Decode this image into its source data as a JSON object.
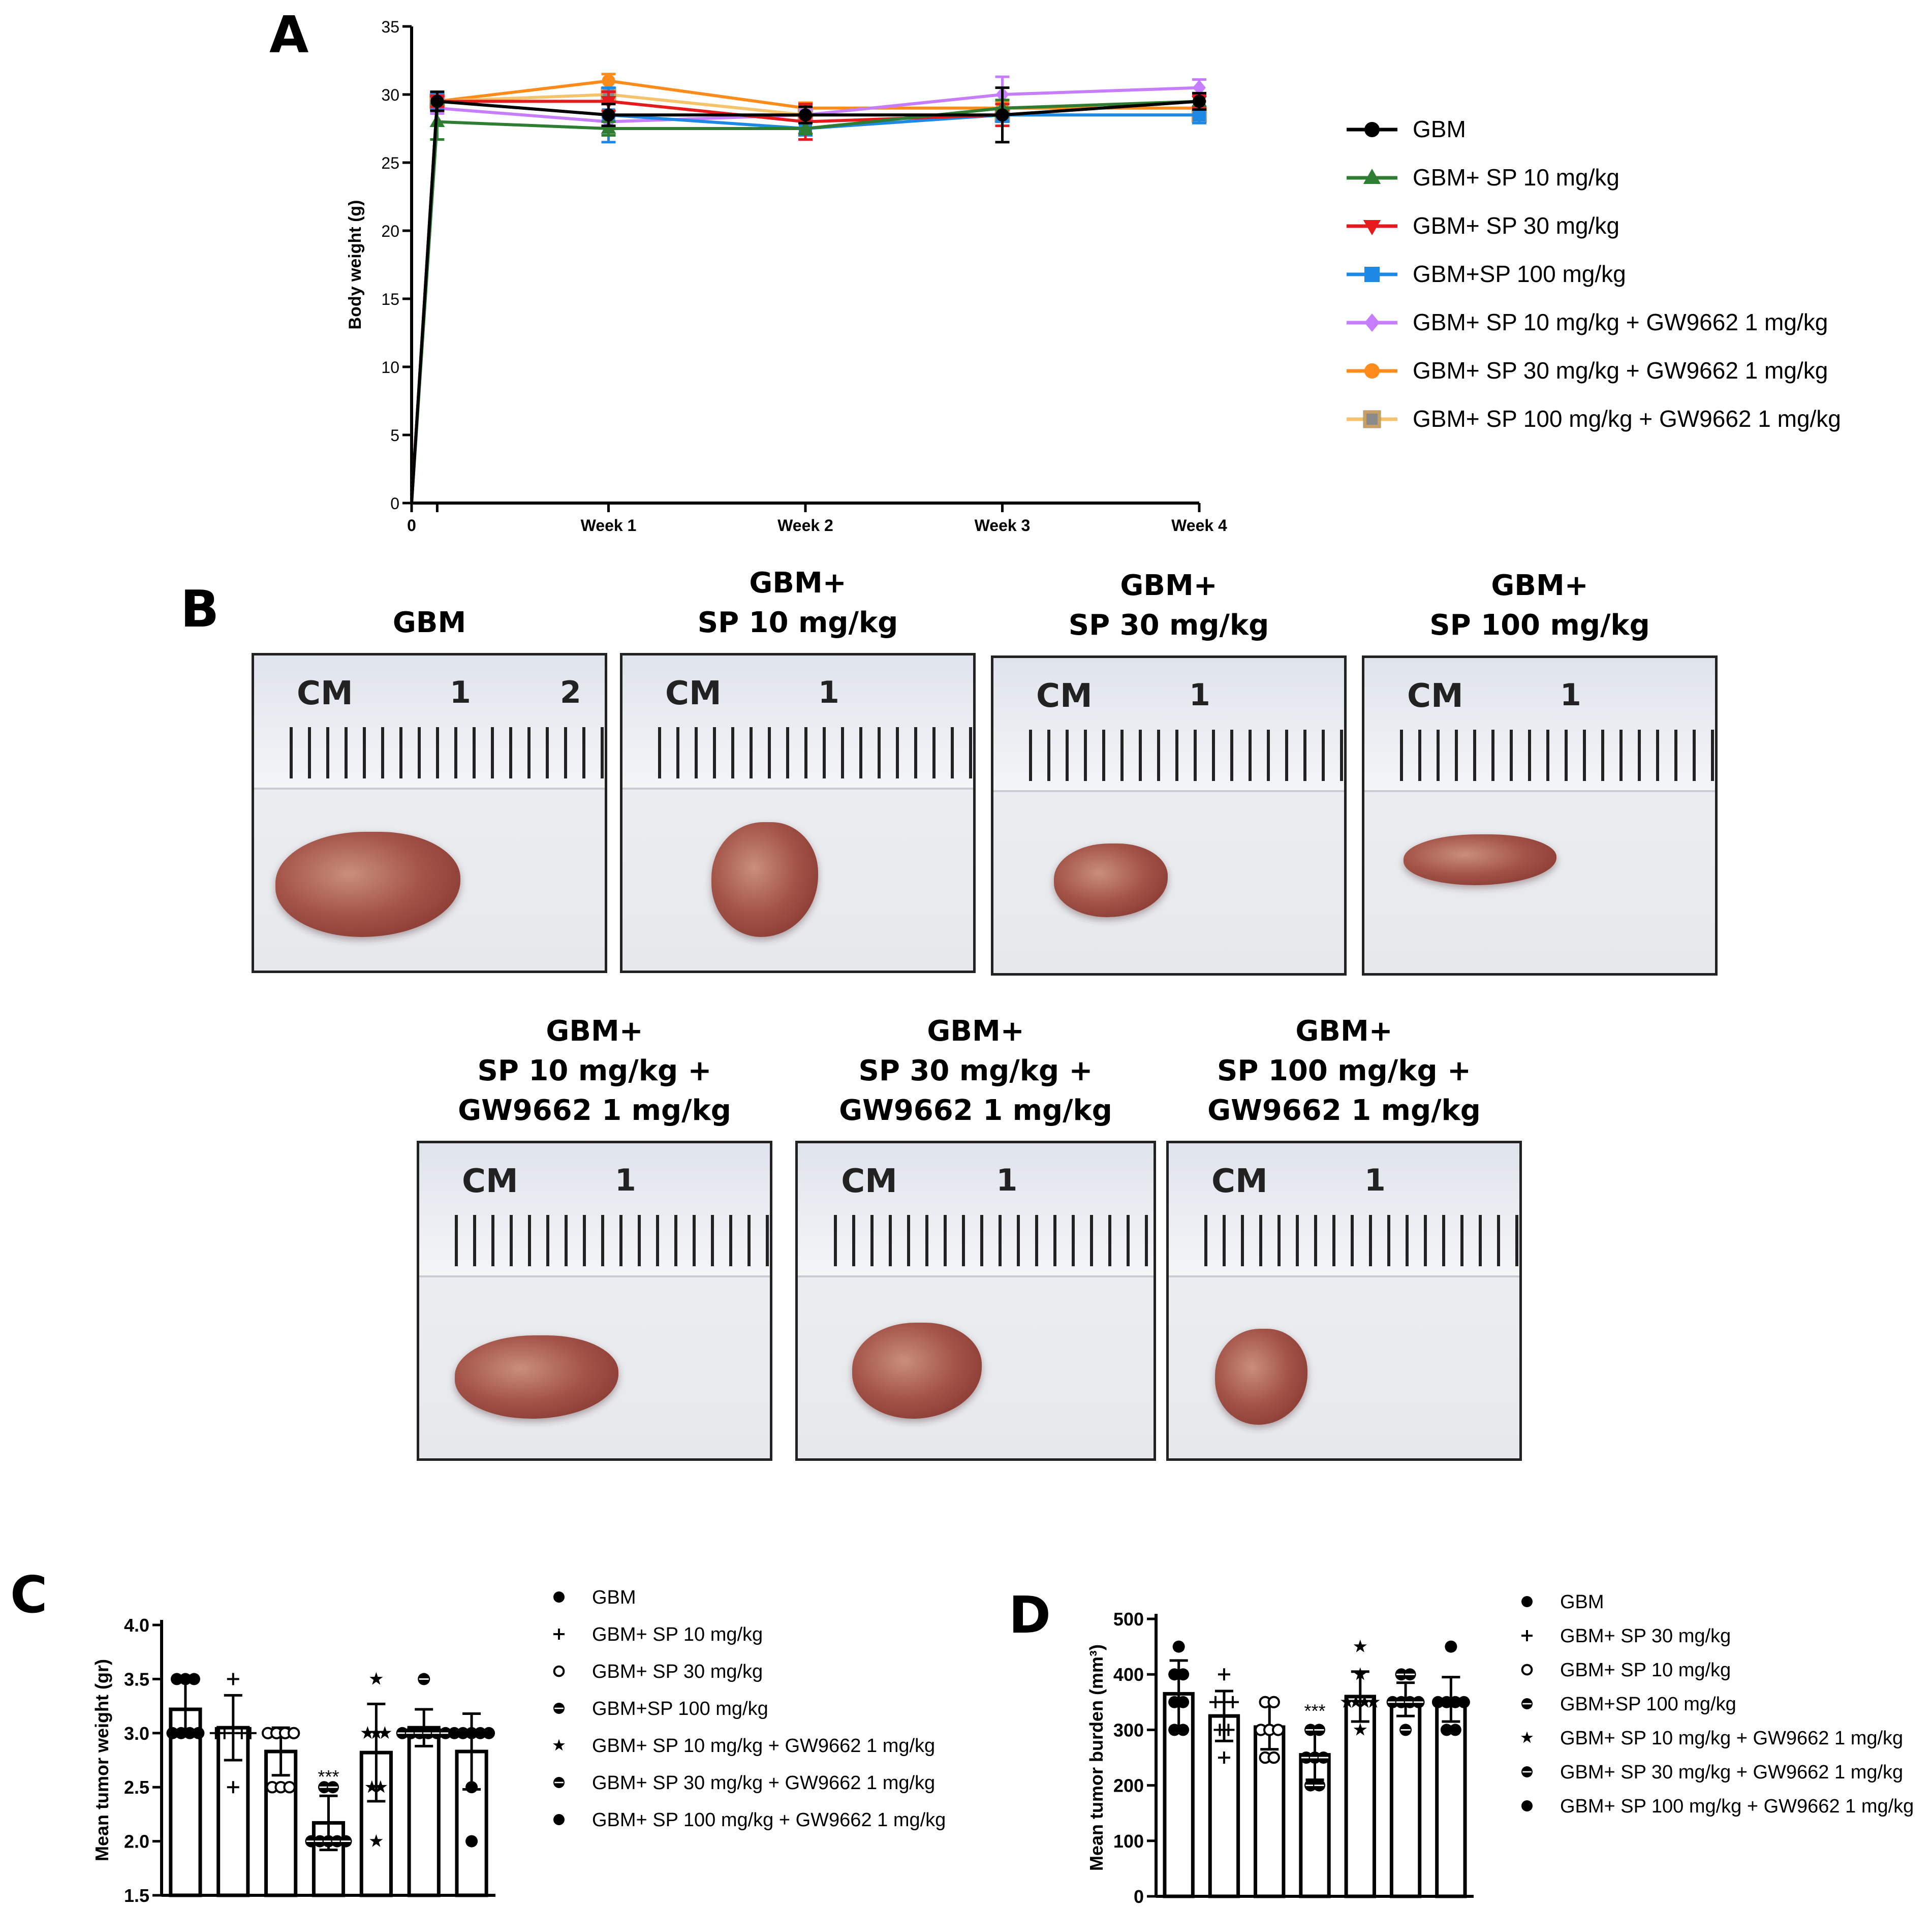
{
  "panels": {
    "a": "A",
    "b": "B",
    "c": "C",
    "d": "D"
  },
  "colors": {
    "gbm": "#000000",
    "sp10": "#2e7d32",
    "sp30": "#e41a1c",
    "sp100": "#1e88e5",
    "sp10gw": "#c77dff",
    "sp30gw": "#ff8c1a",
    "sp100gw": "#f4c36b"
  },
  "chart_data": [
    {
      "type": "line",
      "id": "A",
      "ylabel": "Body weight  (g)",
      "ylim": [
        0,
        35
      ],
      "yticks": [
        0,
        5,
        10,
        15,
        20,
        25,
        30,
        35
      ],
      "categories": [
        "0",
        "",
        "Week 1",
        "Week 2",
        "Week 3",
        "Week 4"
      ],
      "x": [
        0,
        0.13,
        1,
        2,
        3,
        4
      ],
      "series": [
        {
          "name": "GBM",
          "marker": "circle",
          "values": [
            0,
            29.5,
            28.5,
            28.5,
            28.5,
            29.5
          ],
          "err": [
            0,
            0.7,
            0.8,
            0.6,
            2.0,
            0.6
          ]
        },
        {
          "name": "GBM+ SP 10 mg/kg",
          "marker": "triangle-up",
          "values": [
            0,
            28.0,
            27.5,
            27.5,
            29.0,
            29.5
          ],
          "err": [
            0,
            1.3,
            0.5,
            0.4,
            0.6,
            0.6
          ]
        },
        {
          "name": "GBM+ SP 30 mg/kg",
          "marker": "triangle-down",
          "values": [
            0,
            29.5,
            29.5,
            28.0,
            28.5,
            29.5
          ],
          "err": [
            0,
            0.4,
            0.7,
            1.3,
            0.8,
            0.4
          ]
        },
        {
          "name": "GBM+SP 100 mg/kg",
          "marker": "square",
          "values": [
            0,
            29.5,
            28.5,
            27.5,
            28.5,
            28.5
          ],
          "err": [
            0,
            0.6,
            2.0,
            0.5,
            0.5,
            0.6
          ]
        },
        {
          "name": "GBM+ SP 10 mg/kg + GW9662 1 mg/kg",
          "marker": "diamond",
          "values": [
            0,
            29.0,
            28.0,
            28.5,
            30.0,
            30.5
          ],
          "err": [
            0,
            0.4,
            0.4,
            0.4,
            1.3,
            0.6
          ]
        },
        {
          "name": "GBM+ SP 30 mg/kg + GW9662 1 mg/kg",
          "marker": "circle",
          "values": [
            0,
            29.5,
            31.0,
            29.0,
            29.0,
            29.0
          ],
          "err": [
            0,
            0.4,
            0.5,
            0.4,
            0.5,
            0.5
          ]
        },
        {
          "name": "GBM+ SP 100 mg/kg + GW9662 1 mg/kg",
          "marker": "square-open",
          "values": [
            0,
            29.5,
            30.0,
            28.5,
            28.5,
            28.5
          ],
          "err": [
            0,
            0.4,
            0.5,
            0.4,
            0.5,
            0.5
          ]
        }
      ]
    },
    {
      "type": "bar",
      "id": "C",
      "ylabel": "Mean tumor weight (gr)",
      "ylim": [
        1.5,
        4.0
      ],
      "yticks": [
        "1.5",
        "2.0",
        "2.5",
        "3.0",
        "3.5",
        "4.0"
      ],
      "categories": [
        "GBM",
        "GBM+ SP 10 mg/kg",
        "GBM+ SP 30 mg/kg",
        "GBM+SP 100 mg/kg",
        "GBM+ SP 10 mg/kg + GW9662 1 mg/kg",
        "GBM+ SP 30 mg/kg + GW9662 1 mg/kg",
        "GBM+ SP 100 mg/kg + GW9662 1 mg/kg"
      ],
      "markers": [
        "circle",
        "plus",
        "circle-open",
        "circle-half-h",
        "star",
        "circle-half-h",
        "circle"
      ],
      "values": [
        3.22,
        3.05,
        2.83,
        2.17,
        2.82,
        3.05,
        2.83
      ],
      "err": [
        0.25,
        0.3,
        0.22,
        0.25,
        0.45,
        0.17,
        0.35
      ],
      "points": [
        [
          3.5,
          3.5,
          3.5,
          3.0,
          3.0,
          3.0,
          3.0
        ],
        [
          3.5,
          3.0,
          3.0,
          3.0,
          3.0,
          3.0,
          2.5
        ],
        [
          3.0,
          3.0,
          3.0,
          2.5,
          2.5,
          2.5,
          3.0
        ],
        [
          2.5,
          2.5,
          2.0,
          2.0,
          2.0,
          2.0,
          2.0
        ],
        [
          3.5,
          3.0,
          3.0,
          3.0,
          2.5,
          2.5,
          2.0
        ],
        [
          3.5,
          3.0,
          3.0,
          3.0,
          3.0,
          3.0,
          3.0
        ],
        [
          3.0,
          3.0,
          3.0,
          3.0,
          2.5,
          2.0,
          3.0
        ]
      ],
      "annotations": [
        {
          "index": 3,
          "text": "***"
        }
      ]
    },
    {
      "type": "bar",
      "id": "D",
      "ylabel": "Mean tumor burden (mm³)",
      "ylim": [
        0,
        500
      ],
      "yticks": [
        "0",
        "100",
        "200",
        "300",
        "400",
        "500"
      ],
      "categories": [
        "GBM",
        "GBM+ SP 30 mg/kg",
        "GBM+ SP 10 mg/kg",
        "GBM+SP 100 mg/kg",
        "GBM+ SP 10 mg/kg + GW9662 1 mg/kg",
        "GBM+ SP 30 mg/kg + GW9662 1 mg/kg",
        "GBM+ SP 100 mg/kg + GW9662 1 mg/kg"
      ],
      "markers": [
        "circle",
        "plus",
        "circle-open",
        "circle-half-h",
        "star",
        "circle-half-h",
        "circle"
      ],
      "values": [
        365,
        325,
        305,
        255,
        360,
        355,
        355
      ],
      "err": [
        60,
        45,
        40,
        45,
        45,
        30,
        40
      ],
      "points": [
        [
          450,
          400,
          400,
          350,
          350,
          300,
          300
        ],
        [
          400,
          350,
          350,
          300,
          300,
          250,
          350
        ],
        [
          350,
          350,
          300,
          300,
          300,
          250,
          250
        ],
        [
          300,
          300,
          250,
          250,
          250,
          200,
          200
        ],
        [
          450,
          400,
          350,
          350,
          350,
          300,
          350
        ],
        [
          400,
          400,
          350,
          350,
          350,
          300,
          350
        ],
        [
          450,
          350,
          350,
          350,
          300,
          300,
          350
        ]
      ],
      "annotations": [
        {
          "index": 3,
          "text": "***"
        }
      ]
    }
  ],
  "legends": {
    "a": [
      "GBM",
      "GBM+ SP 10 mg/kg",
      "GBM+ SP 30 mg/kg",
      "GBM+SP 100 mg/kg",
      "GBM+ SP 10 mg/kg + GW9662 1 mg/kg",
      "GBM+ SP 30 mg/kg + GW9662 1 mg/kg",
      "GBM+ SP 100 mg/kg + GW9662 1 mg/kg"
    ],
    "c": [
      "GBM",
      "GBM+ SP 10 mg/kg",
      "GBM+ SP 30 mg/kg",
      "GBM+SP 100 mg/kg",
      "GBM+ SP 10 mg/kg + GW9662 1 mg/kg",
      "GBM+ SP 30 mg/kg + GW9662 1 mg/kg",
      "GBM+ SP 100 mg/kg + GW9662 1 mg/kg"
    ],
    "d": [
      "GBM",
      "GBM+ SP 30 mg/kg",
      "GBM+ SP 10 mg/kg",
      "GBM+SP 100 mg/kg",
      "GBM+ SP 10 mg/kg + GW9662 1 mg/kg",
      "GBM+ SP 30 mg/kg + GW9662 1 mg/kg",
      "GBM+ SP 100 mg/kg + GW9662 1 mg/kg"
    ]
  },
  "photos": {
    "row1": [
      {
        "title": [
          "GBM"
        ],
        "cm": "CM",
        "one": "1",
        "two": "2"
      },
      {
        "title": [
          "GBM+",
          "SP 10 mg/kg"
        ],
        "cm": "CM",
        "one": "1"
      },
      {
        "title": [
          "GBM+",
          "SP 30 mg/kg"
        ],
        "cm": "CM",
        "one": "1"
      },
      {
        "title": [
          "GBM+",
          "SP 100 mg/kg"
        ],
        "cm": "CM",
        "one": "1"
      }
    ],
    "row2": [
      {
        "title": [
          "GBM+",
          "SP 10 mg/kg +",
          "GW9662 1 mg/kg"
        ],
        "cm": "CM",
        "one": "1"
      },
      {
        "title": [
          "GBM+",
          "SP 30 mg/kg +",
          "GW9662 1 mg/kg"
        ],
        "cm": "CM",
        "one": "1"
      },
      {
        "title": [
          "GBM+",
          "SP 100 mg/kg +",
          "GW9662 1 mg/kg"
        ],
        "cm": "CM",
        "one": "1"
      }
    ]
  }
}
